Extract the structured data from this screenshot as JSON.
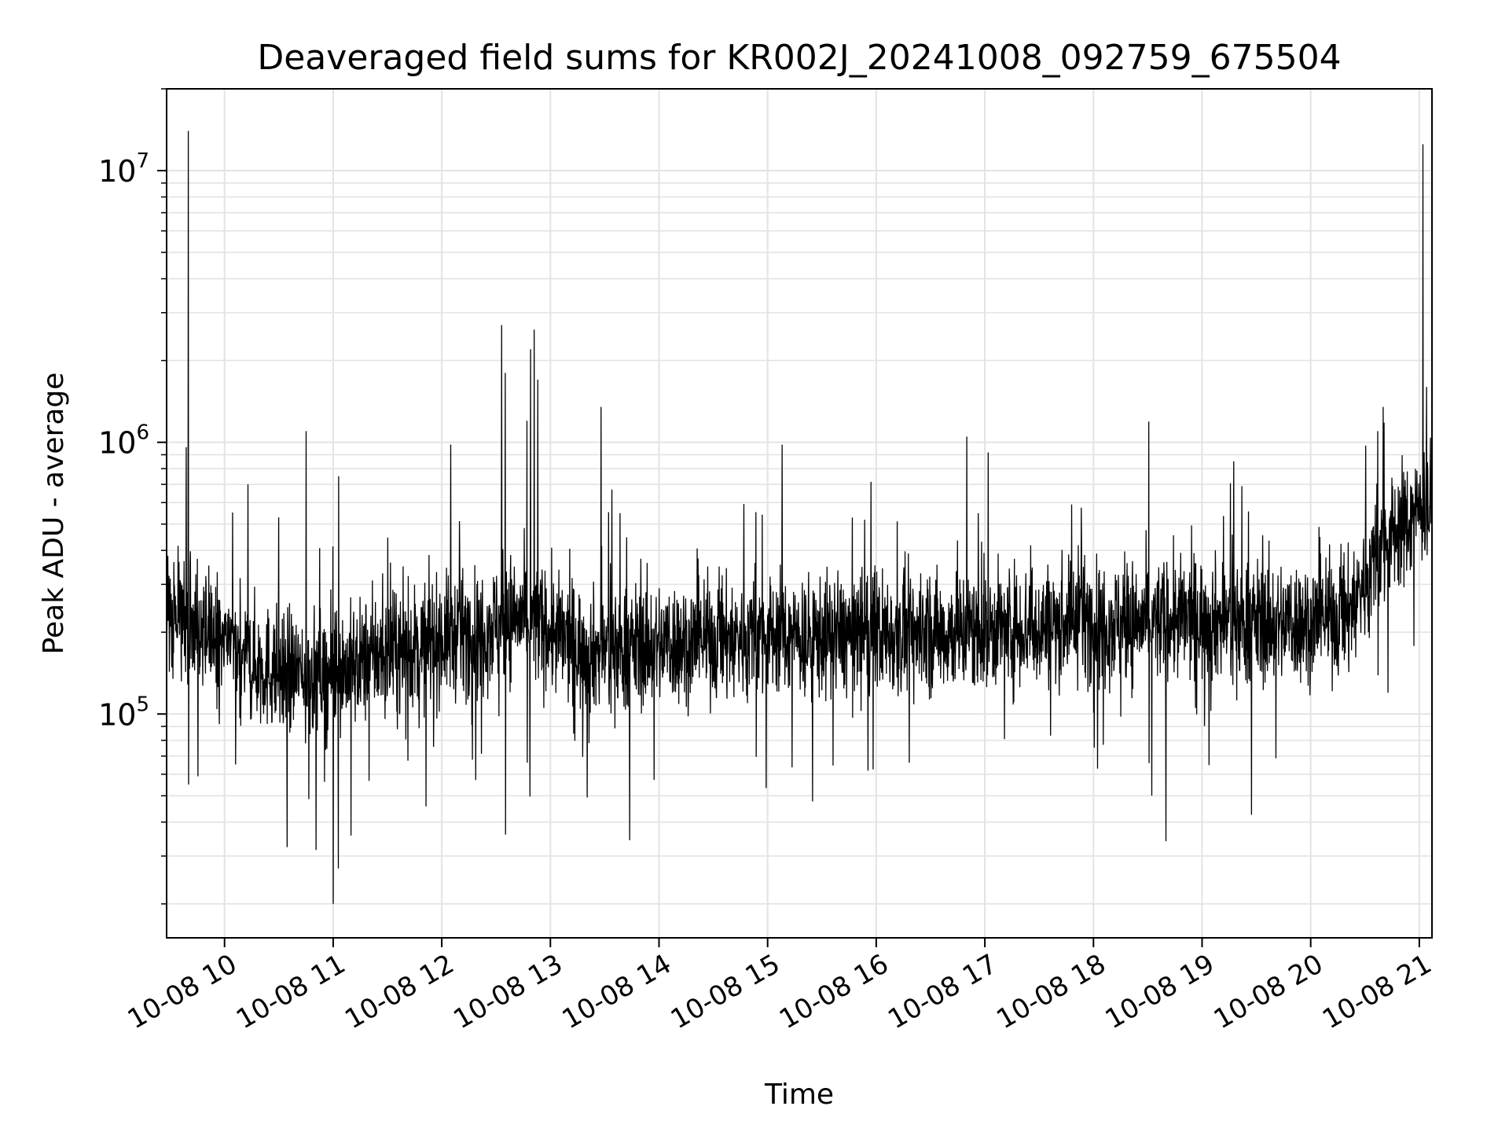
{
  "chart_data": {
    "type": "line",
    "title": "Deaveraged field sums for KR002J_20241008_092759_675504",
    "xlabel": "Time",
    "ylabel": "Peak ADU - average",
    "yscale": "log",
    "xlim": [
      "2024-10-08 09:28",
      "2024-10-08 21:07"
    ],
    "ylim": [
      15000,
      20000000
    ],
    "grid": true,
    "line_color": "#000000",
    "x_ticks": [
      {
        "value": "2024-10-08 10:00",
        "label": "10-08 10"
      },
      {
        "value": "2024-10-08 11:00",
        "label": "10-08 11"
      },
      {
        "value": "2024-10-08 12:00",
        "label": "10-08 12"
      },
      {
        "value": "2024-10-08 13:00",
        "label": "10-08 13"
      },
      {
        "value": "2024-10-08 14:00",
        "label": "10-08 14"
      },
      {
        "value": "2024-10-08 15:00",
        "label": "10-08 15"
      },
      {
        "value": "2024-10-08 16:00",
        "label": "10-08 16"
      },
      {
        "value": "2024-10-08 17:00",
        "label": "10-08 17"
      },
      {
        "value": "2024-10-08 18:00",
        "label": "10-08 18"
      },
      {
        "value": "2024-10-08 19:00",
        "label": "10-08 19"
      },
      {
        "value": "2024-10-08 20:00",
        "label": "10-08 20"
      },
      {
        "value": "2024-10-08 21:00",
        "label": "10-08 21"
      }
    ],
    "y_ticks": [
      {
        "value": 100000,
        "base": "10",
        "exp": "5"
      },
      {
        "value": 1000000,
        "base": "10",
        "exp": "6"
      },
      {
        "value": 10000000,
        "base": "10",
        "exp": "7"
      }
    ],
    "series": [
      {
        "x": [
          "2024-10-08 09:28",
          "2024-10-08 09:40",
          "2024-10-08 10:00",
          "2024-10-08 10:20",
          "2024-10-08 10:40",
          "2024-10-08 11:00",
          "2024-10-08 11:20",
          "2024-10-08 11:40",
          "2024-10-08 12:00",
          "2024-10-08 12:20",
          "2024-10-08 12:40",
          "2024-10-08 13:00",
          "2024-10-08 13:20",
          "2024-10-08 13:40",
          "2024-10-08 14:00",
          "2024-10-08 14:20",
          "2024-10-08 14:40",
          "2024-10-08 15:00",
          "2024-10-08 15:20",
          "2024-10-08 15:40",
          "2024-10-08 16:00",
          "2024-10-08 16:20",
          "2024-10-08 16:40",
          "2024-10-08 17:00",
          "2024-10-08 17:20",
          "2024-10-08 17:40",
          "2024-10-08 18:00",
          "2024-10-08 18:20",
          "2024-10-08 18:40",
          "2024-10-08 19:00",
          "2024-10-08 19:20",
          "2024-10-08 19:40",
          "2024-10-08 20:00",
          "2024-10-08 20:20",
          "2024-10-08 20:40",
          "2024-10-08 21:00",
          "2024-10-08 21:07"
        ],
        "y": [
          250000,
          220000,
          180000,
          150000,
          140000,
          140000,
          160000,
          170000,
          190000,
          200000,
          230000,
          200000,
          170000,
          175000,
          180000,
          185000,
          190000,
          195000,
          190000,
          195000,
          200000,
          195000,
          200000,
          205000,
          210000,
          215000,
          220000,
          215000,
          220000,
          225000,
          220000,
          215000,
          220000,
          230000,
          420000,
          560000,
          600000
        ]
      }
    ],
    "spikes": [
      {
        "x": "2024-10-08 09:40",
        "y": 14000000
      },
      {
        "x": "2024-10-08 09:40",
        "y": 55000
      },
      {
        "x": "2024-10-08 10:13",
        "y": 700000
      },
      {
        "x": "2024-10-08 10:45",
        "y": 1100000
      },
      {
        "x": "2024-10-08 11:00",
        "y": 20000
      },
      {
        "x": "2024-10-08 11:03",
        "y": 750000
      },
      {
        "x": "2024-10-08 12:05",
        "y": 980000
      },
      {
        "x": "2024-10-08 12:33",
        "y": 2700000
      },
      {
        "x": "2024-10-08 12:35",
        "y": 1800000
      },
      {
        "x": "2024-10-08 12:35",
        "y": 36000
      },
      {
        "x": "2024-10-08 12:47",
        "y": 1200000
      },
      {
        "x": "2024-10-08 12:49",
        "y": 2200000
      },
      {
        "x": "2024-10-08 12:51",
        "y": 2600000
      },
      {
        "x": "2024-10-08 12:53",
        "y": 1700000
      },
      {
        "x": "2024-10-08 13:28",
        "y": 1350000
      },
      {
        "x": "2024-10-08 15:08",
        "y": 980000
      },
      {
        "x": "2024-10-08 16:50",
        "y": 1050000
      },
      {
        "x": "2024-10-08 18:40",
        "y": 34000
      },
      {
        "x": "2024-10-08 20:40",
        "y": 1350000
      },
      {
        "x": "2024-10-08 21:02",
        "y": 12500000
      },
      {
        "x": "2024-10-08 21:04",
        "y": 1600000
      }
    ]
  }
}
